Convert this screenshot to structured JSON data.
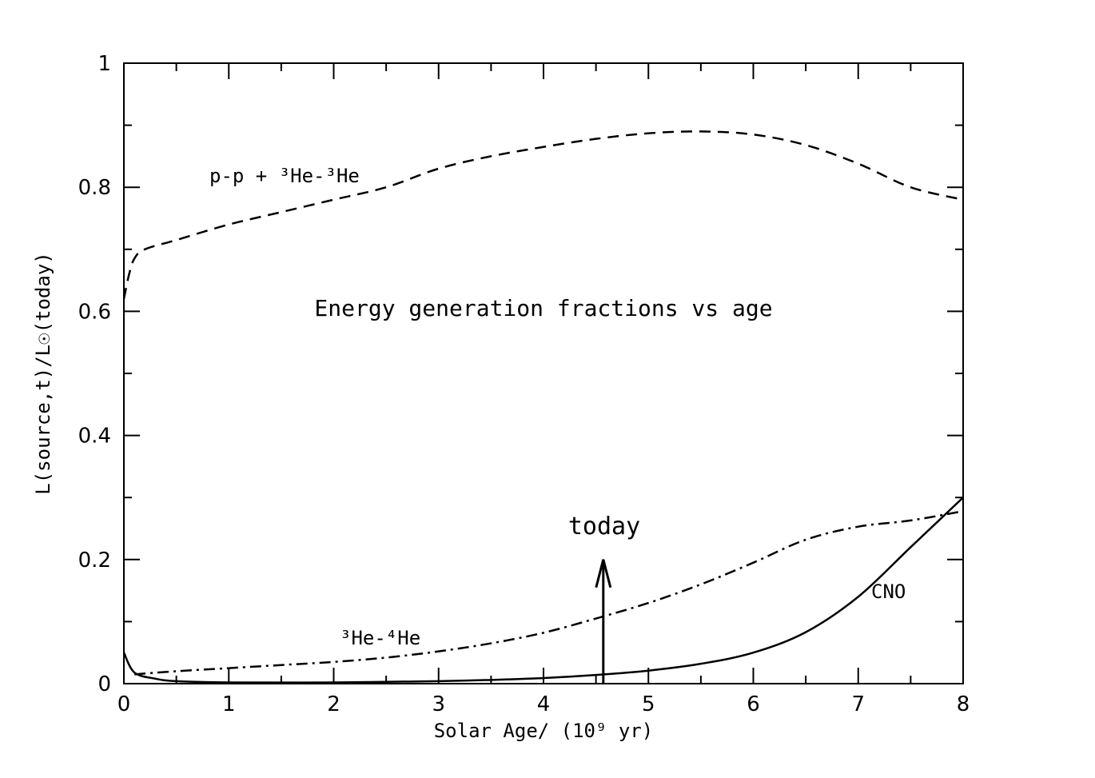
{
  "chart_data": {
    "type": "line",
    "title": "Energy generation fractions vs age",
    "xlabel": "Solar Age/ (10⁹ yr)",
    "ylabel": "L(source,t)/L☉(today)",
    "xlim": [
      0,
      8
    ],
    "ylim": [
      0,
      1
    ],
    "xticks": [
      "0",
      "1",
      "2",
      "3",
      "4",
      "5",
      "6",
      "7",
      "8"
    ],
    "yticks": [
      "0",
      "0.2",
      "0.4",
      "0.6",
      "0.8",
      "1"
    ],
    "grid": false,
    "series": [
      {
        "name": "p-p + ³He-³He",
        "style": "dashed",
        "x": [
          0,
          0.05,
          0.1,
          0.2,
          0.5,
          1,
          1.5,
          2,
          2.5,
          3,
          3.5,
          4,
          4.5,
          5,
          5.5,
          6,
          6.5,
          7,
          7.5,
          8
        ],
        "y": [
          0.62,
          0.66,
          0.685,
          0.7,
          0.715,
          0.74,
          0.76,
          0.78,
          0.8,
          0.83,
          0.85,
          0.865,
          0.878,
          0.887,
          0.89,
          0.885,
          0.868,
          0.838,
          0.8,
          0.78
        ]
      },
      {
        "name": "³He-⁴He",
        "style": "dashdot",
        "x": [
          0.1,
          0.5,
          1,
          1.5,
          2,
          2.5,
          3,
          3.5,
          4,
          4.5,
          5,
          5.5,
          6,
          6.5,
          7,
          7.5,
          8
        ],
        "y": [
          0.015,
          0.02,
          0.025,
          0.03,
          0.035,
          0.042,
          0.052,
          0.065,
          0.082,
          0.105,
          0.13,
          0.16,
          0.195,
          0.232,
          0.253,
          0.263,
          0.278
        ]
      },
      {
        "name": "CNO",
        "style": "solid",
        "x": [
          0,
          0.1,
          0.3,
          0.5,
          1,
          2,
          3,
          3.5,
          4,
          4.5,
          5,
          5.5,
          6,
          6.5,
          7,
          7.5,
          8
        ],
        "y": [
          0.05,
          0.018,
          0.008,
          0.004,
          0.002,
          0.002,
          0.004,
          0.006,
          0.009,
          0.014,
          0.021,
          0.032,
          0.05,
          0.083,
          0.14,
          0.22,
          0.3
        ]
      }
    ],
    "annotations": [
      {
        "text": "today",
        "arrow_x": 4.57,
        "arrow_y": [
          0,
          0.2
        ]
      },
      {
        "text": "p-p + ³He-³He"
      },
      {
        "text": "³He-⁴He"
      },
      {
        "text": "CNO"
      }
    ]
  }
}
